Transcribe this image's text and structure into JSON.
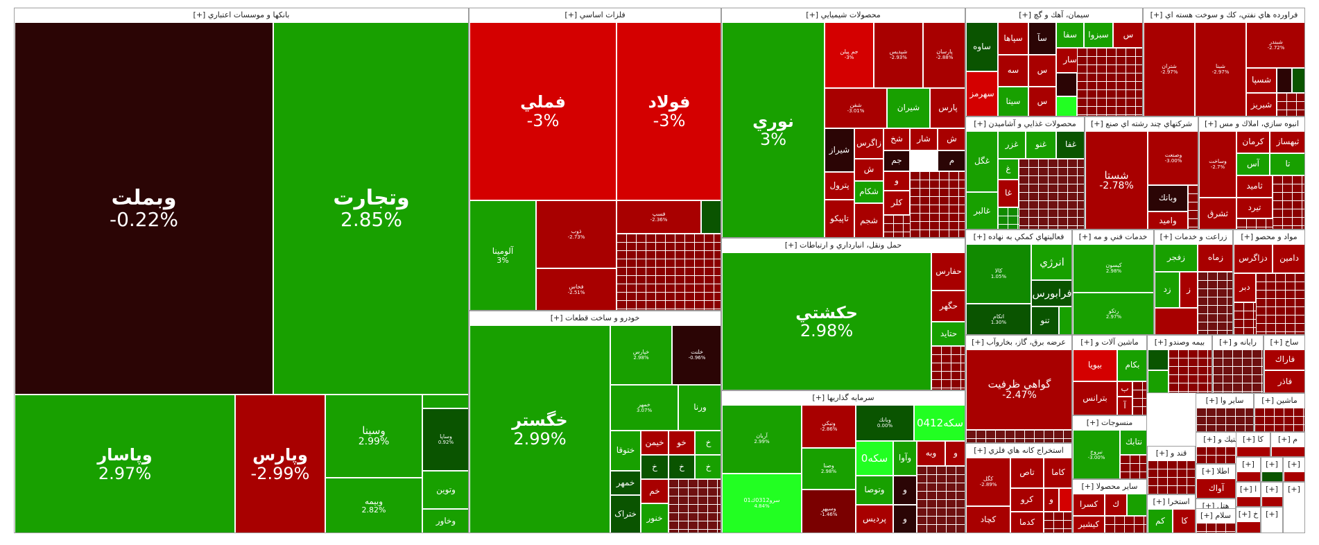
{
  "colors": {
    "strong_green": "#18a000",
    "green": "#1f9e0a",
    "dark_green": "#0a5400",
    "bright_green": "#22ff22",
    "strong_red": "#d40000",
    "red": "#a80000",
    "dark_red": "#7a0000",
    "maroon": "#2b0505"
  },
  "sectors": [
    {
      "title": "بانکها و موسسات اعتباري [+]",
      "cells": [
        {
          "sym": "وبملت",
          "pct": "-0.22%"
        },
        {
          "sym": "وتجارت",
          "pct": "2.85%"
        },
        {
          "sym": "وپاسار",
          "pct": "2.97%"
        },
        {
          "sym": "وپارس",
          "pct": "-2.99%"
        },
        {
          "sym": "وسينا",
          "pct": "2.99%"
        },
        {
          "sym": "وبيمه",
          "pct": "2.82%"
        },
        {
          "sym": "وساپا",
          "pct": "0.92%"
        },
        {
          "sym": "وتوين",
          "pct": ""
        },
        {
          "sym": "وخاور",
          "pct": ""
        }
      ]
    },
    {
      "title": "فلزات اساسي [+]",
      "cells": [
        {
          "sym": "فملي",
          "pct": "-3%"
        },
        {
          "sym": "فولاد",
          "pct": "-3%"
        },
        {
          "sym": "آلومينا",
          "pct": "3%"
        },
        {
          "sym": "ذوب",
          "pct": "-2.73%"
        },
        {
          "sym": "فخاس",
          "pct": "-2.51%"
        },
        {
          "sym": "فسپ",
          "pct": "-2.36%"
        }
      ]
    },
    {
      "title": "خودرو و ساخت قطعات [+]",
      "cells": [
        {
          "sym": "خگستر",
          "pct": "2.99%"
        },
        {
          "sym": "خپارس",
          "pct": "2.98%"
        },
        {
          "sym": "خلنت",
          "pct": "-0.96%"
        },
        {
          "sym": "خمهر",
          "pct": "3.07%"
        },
        {
          "sym": "ورنا",
          "pct": ""
        },
        {
          "sym": "ختوقا",
          "pct": ""
        },
        {
          "sym": "خيمن",
          "pct": ""
        },
        {
          "sym": "خو",
          "pct": ""
        },
        {
          "sym": "خ",
          "pct": ""
        },
        {
          "sym": "خمهر",
          "pct": ""
        },
        {
          "sym": "خم",
          "pct": ""
        },
        {
          "sym": "ختراک",
          "pct": ""
        },
        {
          "sym": "خنور",
          "pct": ""
        },
        {
          "sym": "خ",
          "pct": ""
        },
        {
          "sym": "خ",
          "pct": ""
        },
        {
          "sym": "خ",
          "pct": ""
        }
      ]
    },
    {
      "title": "محصولات شيميايي [+]",
      "cells": [
        {
          "sym": "نوري",
          "pct": "3%"
        },
        {
          "sym": "جم پيلن",
          "pct": "-3%"
        },
        {
          "sym": "شپديس",
          "pct": "-2.93%"
        },
        {
          "sym": "پارسان",
          "pct": "-2.88%"
        },
        {
          "sym": "شفن",
          "pct": "-3.01%"
        },
        {
          "sym": "شيران",
          "pct": ""
        },
        {
          "sym": "پارس",
          "pct": ""
        },
        {
          "sym": "شيراز",
          "pct": ""
        },
        {
          "sym": "زاگرس",
          "pct": ""
        },
        {
          "sym": "شخ",
          "pct": ""
        },
        {
          "sym": "شار",
          "pct": ""
        },
        {
          "sym": "ش",
          "pct": ""
        },
        {
          "sym": "پترول",
          "pct": ""
        },
        {
          "sym": "ش",
          "pct": ""
        },
        {
          "sym": "جم",
          "pct": ""
        },
        {
          "sym": "م",
          "pct": ""
        },
        {
          "sym": "شكام",
          "pct": ""
        },
        {
          "sym": "و",
          "pct": ""
        },
        {
          "sym": "تاپيكو",
          "pct": ""
        },
        {
          "sym": "شجم",
          "pct": ""
        },
        {
          "sym": "كلر",
          "pct": ""
        }
      ]
    },
    {
      "title": "حمل ونقل، انبارداري و ارتباطات [+]",
      "cells": [
        {
          "sym": "حكشتي",
          "pct": "2.98%"
        },
        {
          "sym": "حفارس",
          "pct": ""
        },
        {
          "sym": "حگهر",
          "pct": ""
        },
        {
          "sym": "حتايد",
          "pct": ""
        }
      ]
    },
    {
      "title": "سرمايه گذاريها [+]",
      "cells": [
        {
          "sym": "آريان",
          "pct": "2.99%"
        },
        {
          "sym": "سرو0312ك01",
          "pct": "4.84%"
        },
        {
          "sym": "ونيكي",
          "pct": "-2.86%"
        },
        {
          "sym": "وبانك",
          "pct": "0.00%"
        },
        {
          "sym": "سكه0412",
          "pct": ""
        },
        {
          "sym": "وصنا",
          "pct": "2.98%"
        },
        {
          "sym": "سكه0",
          "pct": ""
        },
        {
          "sym": "وآوا",
          "pct": ""
        },
        {
          "sym": "وبه",
          "pct": ""
        },
        {
          "sym": "و",
          "pct": ""
        },
        {
          "sym": "وتوصا",
          "pct": ""
        },
        {
          "sym": "وسپهر",
          "pct": "-1.46%"
        },
        {
          "sym": "پرديس",
          "pct": ""
        },
        {
          "sym": "و",
          "pct": ""
        },
        {
          "sym": "و",
          "pct": ""
        }
      ]
    },
    {
      "title": "سيمان، آهك و گچ [+]",
      "cells": [
        {
          "sym": "ساوه",
          "pct": ""
        },
        {
          "sym": "سپاها",
          "pct": ""
        },
        {
          "sym": "سآ",
          "pct": ""
        },
        {
          "sym": "سفا",
          "pct": ""
        },
        {
          "sym": "سبزوا",
          "pct": ""
        },
        {
          "sym": "س",
          "pct": ""
        },
        {
          "sym": "سهرمز",
          "pct": ""
        },
        {
          "sym": "سه",
          "pct": ""
        },
        {
          "sym": "س",
          "pct": ""
        },
        {
          "sym": "سار",
          "pct": ""
        },
        {
          "sym": "سيتا",
          "pct": ""
        },
        {
          "sym": "س",
          "pct": ""
        }
      ]
    },
    {
      "title": "فراورده هاي نفتي، كك و سوخت هسته اي [+]",
      "cells": [
        {
          "sym": "شتران",
          "pct": "-2.97%"
        },
        {
          "sym": "شبنا",
          "pct": "-2.97%"
        },
        {
          "sym": "شبندر",
          "pct": "-2.72%"
        },
        {
          "sym": "شسپا",
          "pct": ""
        },
        {
          "sym": "شبريز",
          "pct": ""
        }
      ]
    },
    {
      "title": "محصولات غذايي و آشاميدن [+]",
      "cells": [
        {
          "sym": "غگل",
          "pct": ""
        },
        {
          "sym": "غزر",
          "pct": ""
        },
        {
          "sym": "غنو",
          "pct": ""
        },
        {
          "sym": "غفا",
          "pct": ""
        },
        {
          "sym": "غ",
          "pct": ""
        },
        {
          "sym": "غالبر",
          "pct": ""
        },
        {
          "sym": "غا",
          "pct": ""
        }
      ]
    },
    {
      "title": "شركتهاي چند رشته اي صنع [+]",
      "cells": [
        {
          "sym": "شستا",
          "pct": "-2.78%"
        },
        {
          "sym": "وصنعت",
          "pct": "-3.00%"
        },
        {
          "sym": "وبانك",
          "pct": ""
        },
        {
          "sym": "واميد",
          "pct": ""
        }
      ]
    },
    {
      "title": "انبوه سازي، املاك و مس [+]",
      "cells": [
        {
          "sym": "وساخت",
          "pct": "-2.7%"
        },
        {
          "sym": "ثبهساز",
          "pct": ""
        },
        {
          "sym": "كرمان",
          "pct": ""
        },
        {
          "sym": "آس",
          "pct": ""
        },
        {
          "sym": "تا",
          "pct": ""
        },
        {
          "sym": "ثاميد",
          "pct": ""
        },
        {
          "sym": "ثشرق",
          "pct": ""
        },
        {
          "sym": "تيرد",
          "pct": ""
        }
      ]
    },
    {
      "title": "فعاليتهاي كمكي به نهاده [+]",
      "cells": [
        {
          "sym": "كالا",
          "pct": "1.05%"
        },
        {
          "sym": "انرژي",
          "pct": ""
        },
        {
          "sym": "فرابورس",
          "pct": ""
        },
        {
          "sym": "اتكام",
          "pct": "1.30%"
        },
        {
          "sym": "تنو",
          "pct": ""
        }
      ]
    },
    {
      "title": "خدمات فني و مه [+]",
      "cells": [
        {
          "sym": "كيسون",
          "pct": "2.98%"
        },
        {
          "sym": "رتكو",
          "pct": "2.97%"
        }
      ]
    },
    {
      "title": "زراعت و خدمات [+]",
      "cells": [
        {
          "sym": "زفجر",
          "pct": ""
        },
        {
          "sym": "زماه",
          "pct": ""
        },
        {
          "sym": "زد",
          "pct": ""
        },
        {
          "sym": "ز",
          "pct": ""
        }
      ]
    },
    {
      "title": "مواد و محصو [+]",
      "cells": [
        {
          "sym": "دامين",
          "pct": ""
        },
        {
          "sym": "دزاگرس",
          "pct": ""
        },
        {
          "sym": "دبر",
          "pct": ""
        }
      ]
    },
    {
      "title": "عرضه برق، گاز، بخاروآب [+]",
      "cells": [
        {
          "sym": "گواهي ظرفيت",
          "pct": "-2.47%"
        }
      ]
    },
    {
      "title": "ماشين آلات و [+]",
      "cells": [
        {
          "sym": "بيويا",
          "pct": ""
        },
        {
          "sym": "بكام",
          "pct": ""
        },
        {
          "sym": "بترانس",
          "pct": ""
        },
        {
          "sym": "ب",
          "pct": ""
        },
        {
          "sym": "آ",
          "pct": ""
        }
      ]
    },
    {
      "title": "بيمه وصندو [+]",
      "cells": []
    },
    {
      "title": "رايانه و [+]",
      "cells": []
    },
    {
      "title": "ساخ [+]",
      "cells": [
        {
          "sym": "فاراك",
          "pct": ""
        },
        {
          "sym": "فاذر",
          "pct": ""
        }
      ]
    },
    {
      "title": "استخراج كانه هاي فلزي [+]",
      "cells": [
        {
          "sym": "كگل",
          "pct": "-2.89%"
        },
        {
          "sym": "تاص",
          "pct": ""
        },
        {
          "sym": "كاما",
          "pct": ""
        },
        {
          "sym": "كرو",
          "pct": ""
        },
        {
          "sym": "و",
          "pct": ""
        },
        {
          "sym": "كچاد",
          "pct": ""
        },
        {
          "sym": "كدما",
          "pct": ""
        }
      ]
    },
    {
      "title": "منسوجات [+]",
      "cells": [
        {
          "sym": "نتابك",
          "pct": ""
        },
        {
          "sym": "نبروج",
          "pct": "-3.00%"
        }
      ]
    },
    {
      "title": "ساير محصولا [+]",
      "cells": [
        {
          "sym": "كسرا",
          "pct": ""
        },
        {
          "sym": "ك",
          "pct": ""
        },
        {
          "sym": "كيشير",
          "pct": ""
        }
      ]
    },
    {
      "title": "قند و [+]",
      "cells": []
    },
    {
      "title": "ساير وا [+]",
      "cells": []
    },
    {
      "title": "لاستيك و [+]",
      "cells": []
    },
    {
      "title": "ماشين [+]",
      "cells": []
    },
    {
      "title": "استخرا [+]",
      "cells": [
        {
          "sym": "كم",
          "pct": ""
        },
        {
          "sym": "كا",
          "pct": ""
        }
      ]
    },
    {
      "title": "اطلا [+]",
      "cells": [
        {
          "sym": "آواك",
          "pct": ""
        }
      ]
    },
    {
      "title": "هتل [+]",
      "cells": []
    },
    {
      "title": "سلام [+]",
      "cells": []
    },
    {
      "title": "كا [+]",
      "cells": []
    },
    {
      "title": "م [+]",
      "cells": []
    },
    {
      "title": "[+]",
      "cells": []
    },
    {
      "title": "[+]",
      "cells": []
    },
    {
      "title": "[+]",
      "cells": []
    },
    {
      "title": "ا [+]",
      "cells": []
    },
    {
      "title": "[+]",
      "cells": []
    },
    {
      "title": "خ [+]",
      "cells": []
    },
    {
      "title": "[+]",
      "cells": []
    },
    {
      "title": "[+]",
      "cells": []
    }
  ]
}
